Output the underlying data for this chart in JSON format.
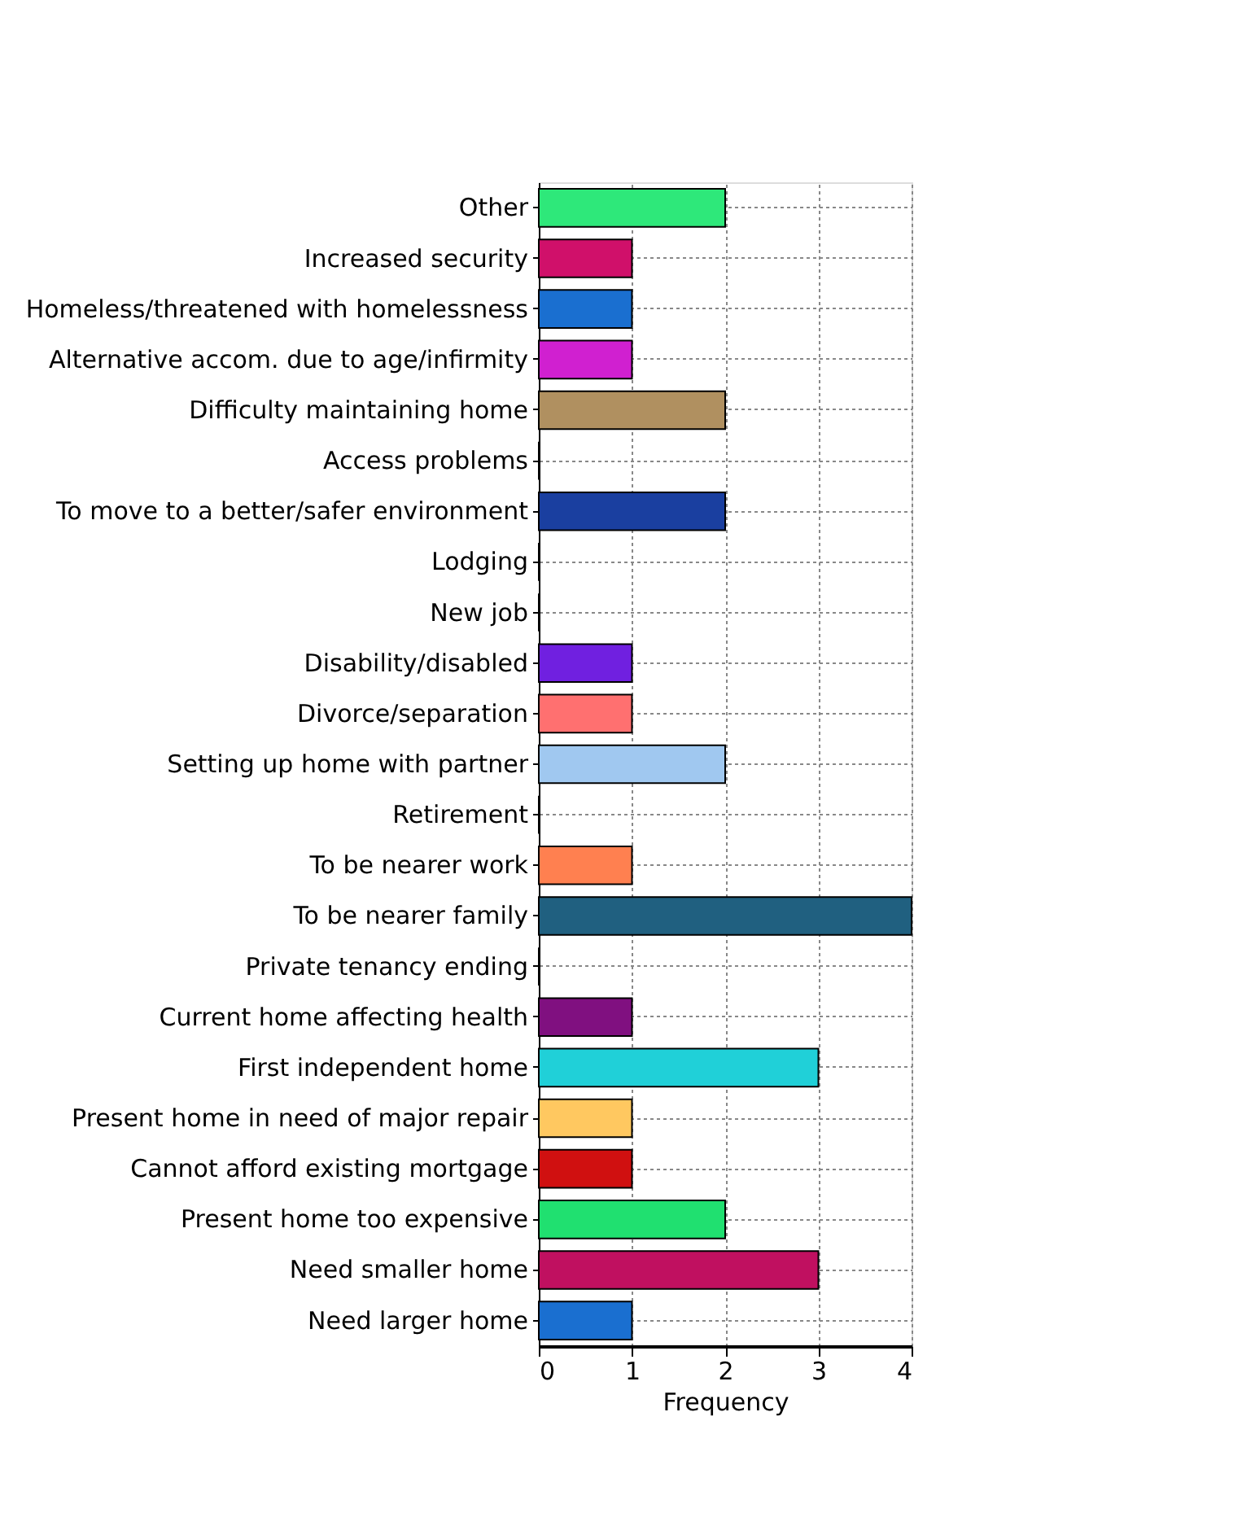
{
  "chart_data": {
    "type": "bar",
    "orientation": "horizontal",
    "xlabel": "Frequency",
    "categories": [
      "Other",
      "Increased security",
      "Homeless/threatened with homelessness",
      "Alternative accom. due to age/infirmity",
      "Difficulty maintaining home",
      "Access problems",
      "To move to a better/safer environment",
      "Lodging",
      "New job",
      "Disability/disabled",
      "Divorce/separation",
      "Setting up home with partner",
      "Retirement",
      "To be nearer work",
      "To be nearer family",
      "Private tenancy ending",
      "Current home affecting health",
      "First independent home",
      "Present home in need of major repair",
      "Cannot afford existing mortgage",
      "Present home too expensive",
      "Need smaller home",
      "Need larger home"
    ],
    "values": [
      2,
      1,
      1,
      1,
      2,
      0,
      2,
      0,
      0,
      1,
      1,
      2,
      0,
      1,
      4,
      0,
      1,
      3,
      1,
      1,
      2,
      3,
      1
    ],
    "colors": [
      "#2ee87a",
      "#d0106a",
      "#1a6fd0",
      "#d020d0",
      "#b09060",
      "#e0a000",
      "#1a3fa0",
      "#e0a000",
      "#20c0a0",
      "#7020e0",
      "#ff7070",
      "#a0c8f0",
      "#20a040",
      "#ff8050",
      "#206080",
      "#c0a000",
      "#801080",
      "#20d0d8",
      "#ffc860",
      "#d01010",
      "#20e070",
      "#c01060",
      "#1a6fd0"
    ],
    "xlim": [
      0,
      4
    ],
    "xticks": [
      0,
      1,
      2,
      3,
      4
    ],
    "grid": true
  }
}
